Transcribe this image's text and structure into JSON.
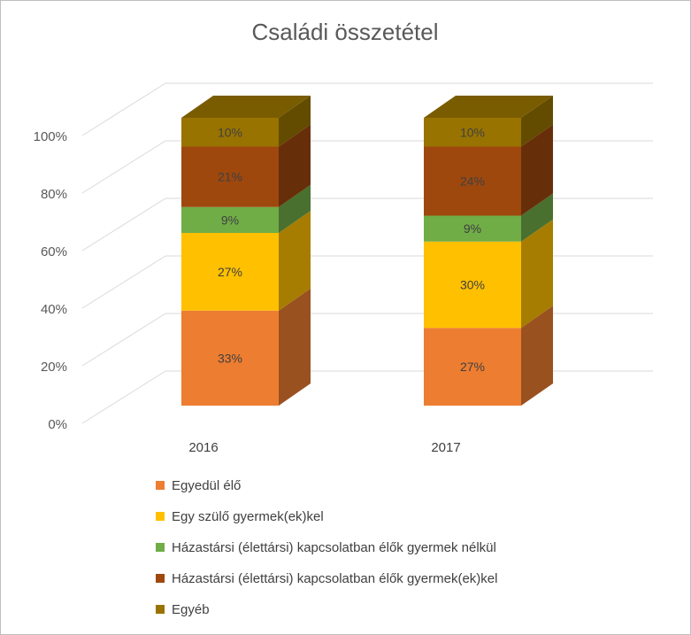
{
  "chart_data": {
    "type": "bar",
    "stacked": true,
    "percent_stacked": true,
    "style": "3d",
    "title": "Családi összetétel",
    "xlabel": "",
    "ylabel": "",
    "ylim": [
      0,
      100
    ],
    "y_ticks": [
      "0%",
      "20%",
      "40%",
      "60%",
      "80%",
      "100%"
    ],
    "categories": [
      "2016",
      "2017"
    ],
    "grid": true,
    "legend_position": "bottom",
    "series": [
      {
        "name": "Egyedül élő",
        "color": "#ED7D31",
        "values": [
          33,
          27
        ],
        "labels": [
          "33%",
          "27%"
        ]
      },
      {
        "name": "Egy szülő gyermek(ek)kel",
        "color": "#FFC000",
        "values": [
          27,
          30
        ],
        "labels": [
          "27%",
          "30%"
        ]
      },
      {
        "name": "Házastársi (élettársi) kapcsolatban élők gyermek nélkül",
        "color": "#70AD47",
        "values": [
          9,
          9
        ],
        "labels": [
          "9%",
          "9%"
        ]
      },
      {
        "name": "Házastársi (élettársi) kapcsolatban élők gyermek(ek)kel",
        "color": "#9E480E",
        "values": [
          21,
          24
        ],
        "labels": [
          "21%",
          "24%"
        ]
      },
      {
        "name": "Egyéb",
        "color": "#997300",
        "values": [
          10,
          10
        ],
        "labels": [
          "10%",
          "10%"
        ]
      }
    ]
  }
}
